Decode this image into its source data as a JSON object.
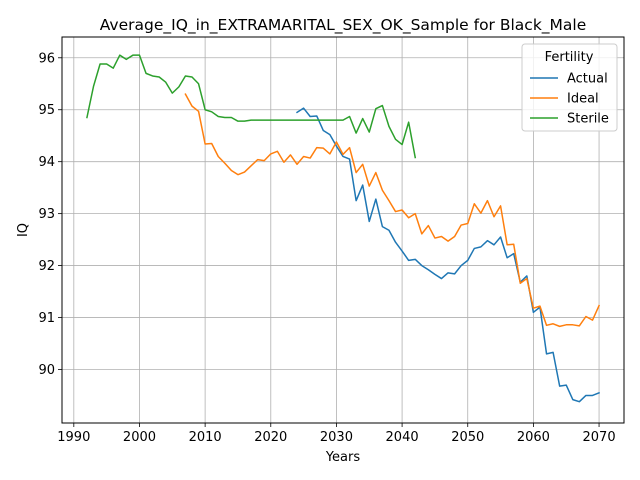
{
  "chart_data": {
    "type": "line",
    "title": "Average_IQ_in_EXTRAMARITAL_SEX_OK_Sample for Black_Male",
    "xlabel": "Years",
    "ylabel": "IQ",
    "xlim": [
      1988.2,
      2073.8
    ],
    "ylim": [
      88.97,
      96.4
    ],
    "xticks": [
      1990,
      2000,
      2010,
      2020,
      2030,
      2040,
      2050,
      2060,
      2070
    ],
    "yticks": [
      90,
      91,
      92,
      93,
      94,
      95,
      96
    ],
    "grid": true,
    "legend": {
      "title": "Fertility",
      "position": "top-right"
    },
    "series": [
      {
        "name": "Actual",
        "color": "#1f77b4",
        "x": [
          2024,
          2025,
          2026,
          2027,
          2028,
          2029,
          2030,
          2031,
          2032,
          2033,
          2034,
          2035,
          2036,
          2037,
          2038,
          2039,
          2040,
          2041,
          2042,
          2043,
          2044,
          2045,
          2046,
          2047,
          2048,
          2049,
          2050,
          2051,
          2052,
          2053,
          2054,
          2055,
          2056,
          2057,
          2058,
          2059,
          2060,
          2061,
          2062,
          2063,
          2064,
          2065,
          2066,
          2067,
          2068,
          2069,
          2070
        ],
        "y": [
          94.95,
          95.03,
          94.87,
          94.88,
          94.6,
          94.52,
          94.3,
          94.1,
          94.05,
          93.25,
          93.55,
          92.85,
          93.28,
          92.75,
          92.68,
          92.45,
          92.28,
          92.1,
          92.12,
          92.0,
          91.92,
          91.83,
          91.75,
          91.86,
          91.84,
          92.0,
          92.1,
          92.33,
          92.36,
          92.48,
          92.4,
          92.55,
          92.15,
          92.23,
          91.68,
          91.8,
          91.1,
          91.2,
          90.3,
          90.33,
          89.68,
          89.7,
          89.42,
          89.38,
          89.5,
          89.5,
          89.55
        ]
      },
      {
        "name": "Ideal",
        "color": "#ff7f0e",
        "x": [
          2007,
          2008,
          2009,
          2010,
          2011,
          2012,
          2013,
          2014,
          2015,
          2016,
          2017,
          2018,
          2019,
          2020,
          2021,
          2022,
          2023,
          2024,
          2025,
          2026,
          2027,
          2028,
          2029,
          2030,
          2031,
          2032,
          2033,
          2034,
          2035,
          2036,
          2037,
          2038,
          2039,
          2040,
          2041,
          2042,
          2043,
          2044,
          2045,
          2046,
          2047,
          2048,
          2049,
          2050,
          2051,
          2052,
          2053,
          2054,
          2055,
          2056,
          2057,
          2058,
          2059,
          2060,
          2061,
          2062,
          2063,
          2064,
          2065,
          2066,
          2067,
          2068,
          2069,
          2070
        ],
        "y": [
          95.3,
          95.07,
          94.97,
          94.34,
          94.35,
          94.1,
          93.97,
          93.83,
          93.75,
          93.8,
          93.92,
          94.04,
          94.02,
          94.15,
          94.2,
          93.99,
          94.13,
          93.95,
          94.1,
          94.07,
          94.27,
          94.26,
          94.15,
          94.38,
          94.14,
          94.27,
          93.79,
          93.95,
          93.53,
          93.79,
          93.45,
          93.25,
          93.04,
          93.07,
          92.92,
          93.0,
          92.61,
          92.77,
          92.53,
          92.56,
          92.47,
          92.56,
          92.78,
          92.81,
          93.19,
          93.01,
          93.25,
          92.94,
          93.15,
          92.4,
          92.41,
          91.66,
          91.75,
          91.18,
          91.22,
          90.85,
          90.88,
          90.83,
          90.86,
          90.86,
          90.84,
          91.02,
          90.95,
          91.23
        ]
      },
      {
        "name": "Sterile",
        "color": "#2ca02c",
        "x": [
          1992,
          1993,
          1994,
          1995,
          1996,
          1997,
          1998,
          1999,
          2000,
          2001,
          2002,
          2003,
          2004,
          2005,
          2006,
          2007,
          2008,
          2009,
          2010,
          2011,
          2012,
          2013,
          2014,
          2015,
          2016,
          2017,
          2018,
          2019,
          2020,
          2021,
          2022,
          2023,
          2024,
          2025,
          2026,
          2027,
          2028,
          2029,
          2030,
          2031,
          2032,
          2033,
          2034,
          2035,
          2036,
          2037,
          2038,
          2039,
          2040,
          2041,
          2042
        ],
        "y": [
          94.85,
          95.45,
          95.88,
          95.88,
          95.8,
          96.05,
          95.97,
          96.05,
          96.05,
          95.7,
          95.65,
          95.63,
          95.53,
          95.32,
          95.44,
          95.65,
          95.63,
          95.5,
          95.0,
          94.96,
          94.87,
          94.85,
          94.85,
          94.78,
          94.78,
          94.8,
          94.8,
          94.8,
          94.8,
          94.8,
          94.8,
          94.8,
          94.8,
          94.8,
          94.8,
          94.8,
          94.8,
          94.8,
          94.8,
          94.8,
          94.87,
          94.55,
          94.83,
          94.57,
          95.02,
          95.08,
          94.68,
          94.43,
          94.33,
          94.76,
          94.08
        ]
      }
    ]
  }
}
